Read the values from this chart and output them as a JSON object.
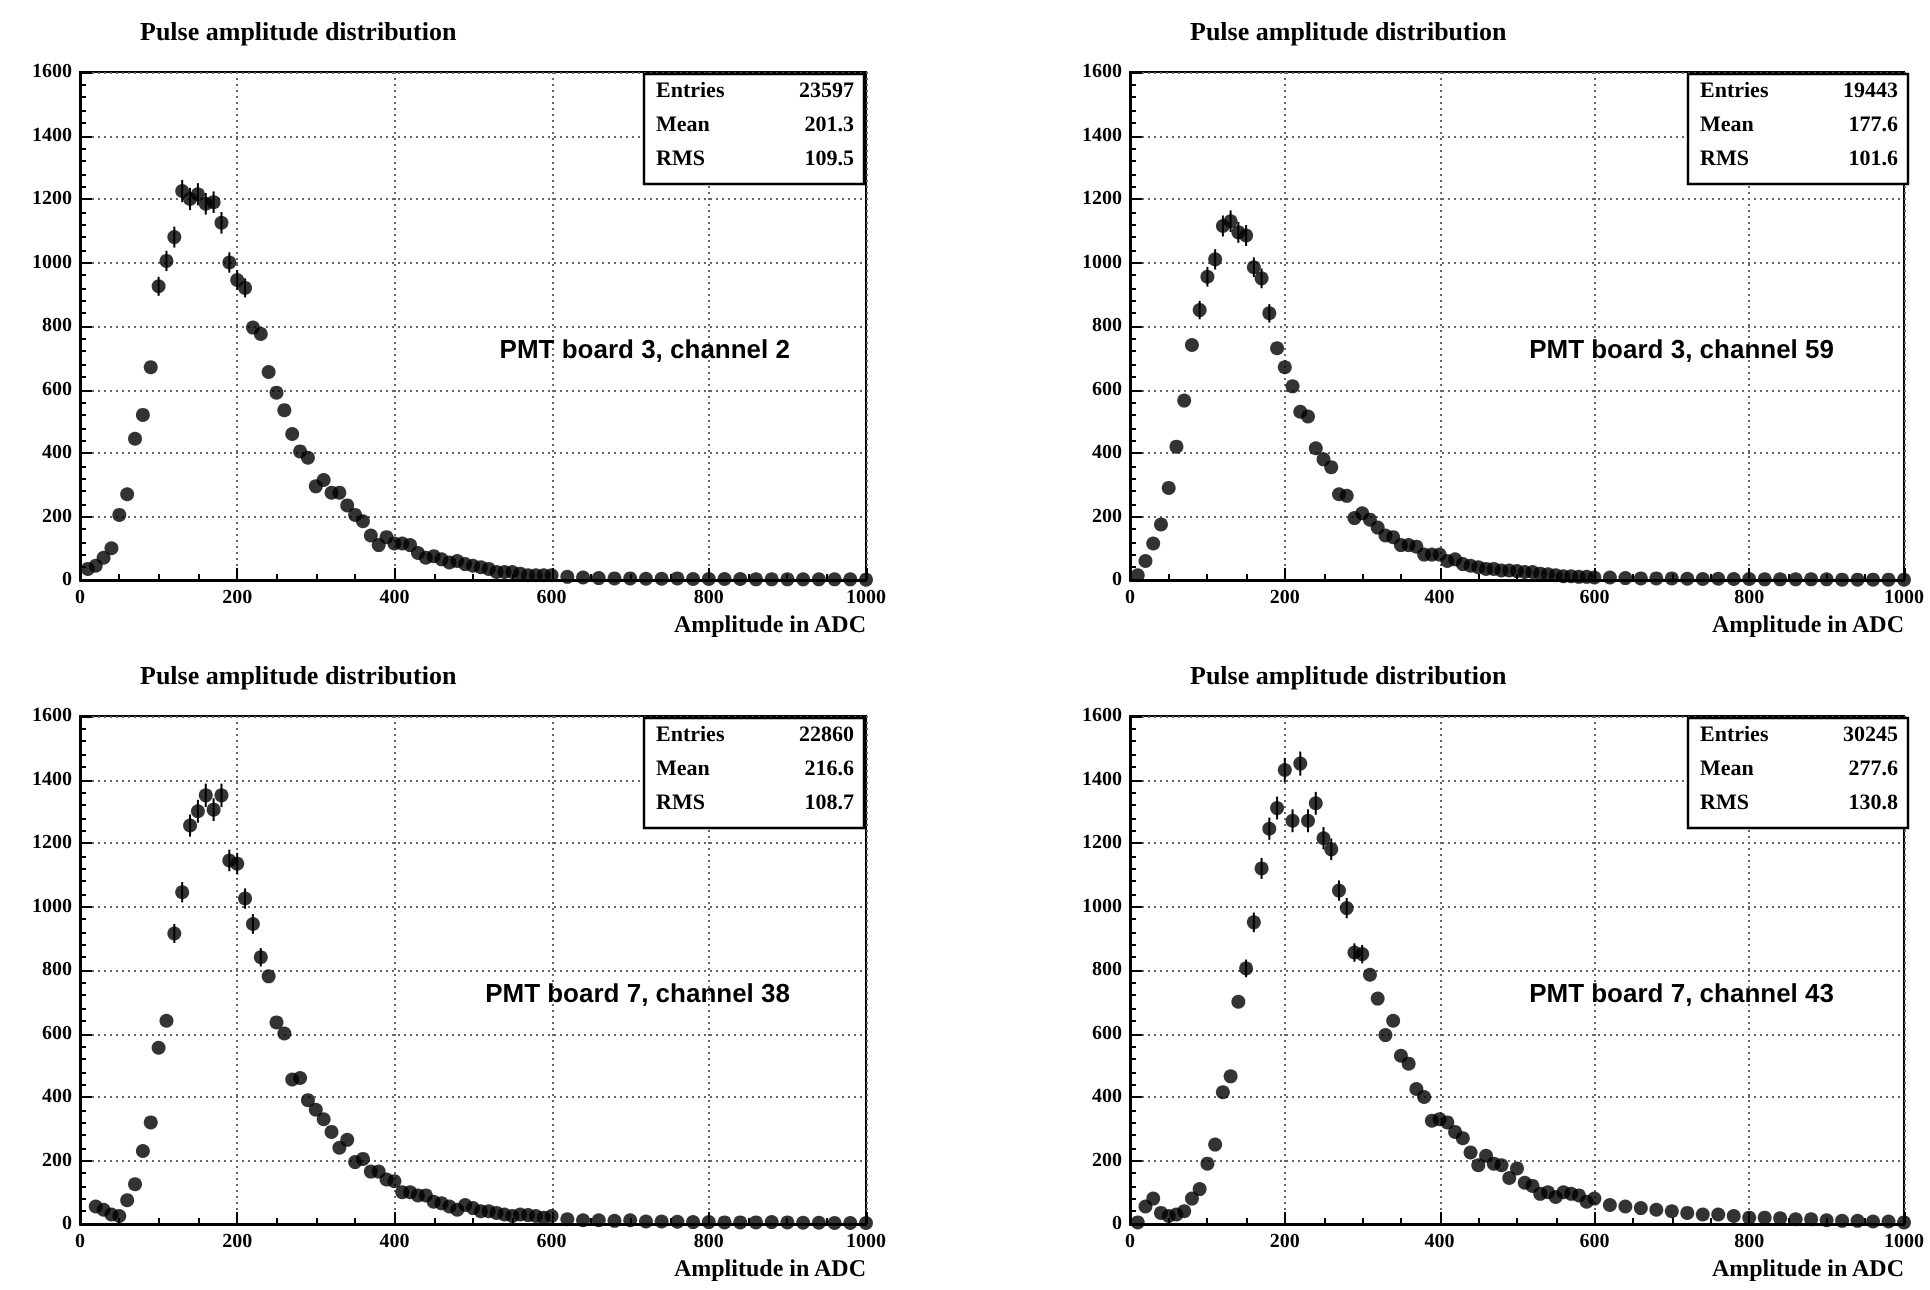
{
  "chart_data": [
    {
      "type": "scatter",
      "title": "Pulse amplitude distribution",
      "xlabel": "Amplitude in ADC",
      "annotations": [
        "Entries 23597",
        "Mean 201.3",
        "RMS 109.5",
        "PMT board 3, channel 2"
      ],
      "xlim": [
        0,
        1000
      ],
      "xticks": [
        0,
        200,
        400,
        600,
        800,
        1000
      ],
      "ylim": [
        0,
        1600
      ],
      "yticks": [
        0,
        200,
        400,
        600,
        800,
        1000,
        1200,
        1400,
        1600
      ],
      "grid": true,
      "marker": "circle",
      "x": [
        10,
        20,
        30,
        40,
        50,
        60,
        70,
        80,
        90,
        100,
        110,
        120,
        130,
        140,
        150,
        160,
        170,
        180,
        190,
        200,
        210,
        220,
        230,
        240,
        250,
        260,
        270,
        280,
        290,
        300,
        310,
        320,
        330,
        340,
        350,
        360,
        370,
        380,
        390,
        400,
        410,
        420,
        430,
        440,
        450,
        460,
        470,
        480,
        490,
        500,
        510,
        520,
        530,
        540,
        550,
        560,
        570,
        580,
        590,
        600,
        620,
        640,
        660,
        680,
        700,
        720,
        740,
        760,
        780,
        800,
        820,
        840,
        860,
        880,
        900,
        920,
        940,
        960,
        980,
        1000
      ],
      "series": [
        {
          "color": "#000000",
          "values": [
            35,
            45,
            70,
            100,
            205,
            270,
            445,
            520,
            670,
            925,
            1005,
            1080,
            1225,
            1200,
            1215,
            1185,
            1190,
            1125,
            1000,
            945,
            920,
            795,
            775,
            655,
            590,
            535,
            460,
            405,
            385,
            295,
            315,
            275,
            275,
            235,
            205,
            185,
            140,
            110,
            135,
            115,
            115,
            110,
            85,
            70,
            75,
            65,
            55,
            60,
            50,
            45,
            40,
            35,
            25,
            25,
            25,
            20,
            15,
            15,
            15,
            15,
            10,
            8,
            6,
            5,
            5,
            4,
            4,
            5,
            3,
            3,
            3,
            3,
            2,
            2,
            2,
            2,
            2,
            2,
            2,
            1
          ],
          "errors": [
            null,
            null,
            null,
            null,
            null,
            null,
            null,
            null,
            null,
            30,
            32,
            33,
            35,
            35,
            35,
            34,
            34,
            34,
            32,
            31,
            30,
            null,
            null,
            null,
            null,
            null,
            null,
            null,
            null,
            null,
            null,
            null,
            null,
            null,
            null,
            null,
            null,
            null,
            null,
            null,
            null,
            null,
            null,
            null,
            null,
            null,
            null,
            null,
            null,
            null,
            null,
            null,
            null,
            null,
            null,
            null,
            null,
            null,
            null,
            null,
            null,
            null,
            null,
            null,
            null,
            null,
            null,
            null,
            null,
            null,
            null,
            null,
            null,
            null,
            null,
            null,
            null,
            null,
            null,
            null
          ]
        }
      ]
    },
    {
      "type": "scatter",
      "title": "Pulse amplitude distribution",
      "xlabel": "Amplitude in ADC",
      "annotations": [
        "Entries 19443",
        "Mean 177.6",
        "RMS 101.6",
        "PMT board 3, channel 59"
      ],
      "xlim": [
        0,
        1000
      ],
      "xticks": [
        0,
        200,
        400,
        600,
        800,
        1000
      ],
      "ylim": [
        0,
        1600
      ],
      "yticks": [
        0,
        200,
        400,
        600,
        800,
        1000,
        1200,
        1400,
        1600
      ],
      "grid": true,
      "marker": "circle",
      "x": [
        10,
        20,
        30,
        40,
        50,
        60,
        70,
        80,
        90,
        100,
        110,
        120,
        130,
        140,
        150,
        160,
        170,
        180,
        190,
        200,
        210,
        220,
        230,
        240,
        250,
        260,
        270,
        280,
        290,
        300,
        310,
        320,
        330,
        340,
        350,
        360,
        370,
        380,
        390,
        400,
        410,
        420,
        430,
        440,
        450,
        460,
        470,
        480,
        490,
        500,
        510,
        520,
        530,
        540,
        550,
        560,
        570,
        580,
        590,
        600,
        620,
        640,
        660,
        680,
        700,
        720,
        740,
        760,
        780,
        800,
        820,
        840,
        860,
        880,
        900,
        920,
        940,
        960,
        980,
        1000
      ],
      "series": [
        {
          "color": "#000000",
          "values": [
            15,
            60,
            115,
            175,
            290,
            420,
            565,
            740,
            850,
            955,
            1010,
            1115,
            1130,
            1095,
            1085,
            985,
            950,
            840,
            730,
            670,
            610,
            530,
            515,
            415,
            380,
            355,
            270,
            265,
            195,
            210,
            190,
            165,
            140,
            135,
            110,
            110,
            105,
            80,
            80,
            80,
            60,
            65,
            50,
            45,
            40,
            35,
            35,
            30,
            30,
            28,
            25,
            25,
            20,
            18,
            15,
            12,
            12,
            10,
            10,
            8,
            8,
            6,
            5,
            5,
            5,
            4,
            3,
            4,
            3,
            3,
            2,
            2,
            2,
            2,
            2,
            1,
            1,
            1,
            1,
            1
          ],
          "errors": [
            null,
            null,
            null,
            null,
            null,
            null,
            null,
            null,
            29,
            31,
            32,
            33,
            34,
            33,
            33,
            31,
            31,
            29,
            null,
            null,
            null,
            null,
            null,
            null,
            null,
            null,
            null,
            null,
            null,
            null,
            null,
            null,
            null,
            null,
            null,
            null,
            null,
            null,
            null,
            null,
            null,
            null,
            null,
            null,
            null,
            null,
            null,
            null,
            null,
            null,
            null,
            null,
            null,
            null,
            null,
            null,
            null,
            null,
            null,
            null,
            null,
            null,
            null,
            null,
            null,
            null,
            null,
            null,
            null,
            null,
            null,
            null,
            null,
            null,
            null,
            null,
            null,
            null,
            null,
            null
          ]
        }
      ]
    },
    {
      "type": "scatter",
      "title": "Pulse amplitude distribution",
      "xlabel": "Amplitude in ADC",
      "annotations": [
        "Entries 22860",
        "Mean 216.6",
        "RMS 108.7",
        "PMT board 7, channel 38"
      ],
      "xlim": [
        0,
        1000
      ],
      "xticks": [
        0,
        200,
        400,
        600,
        800,
        1000
      ],
      "ylim": [
        0,
        1600
      ],
      "yticks": [
        0,
        200,
        400,
        600,
        800,
        1000,
        1200,
        1400,
        1600
      ],
      "grid": true,
      "marker": "circle",
      "x": [
        20,
        30,
        40,
        50,
        60,
        70,
        80,
        90,
        100,
        110,
        120,
        130,
        140,
        150,
        160,
        170,
        180,
        190,
        200,
        210,
        220,
        230,
        240,
        250,
        260,
        270,
        280,
        290,
        300,
        310,
        320,
        330,
        340,
        350,
        360,
        370,
        380,
        390,
        400,
        410,
        420,
        430,
        440,
        450,
        460,
        470,
        480,
        490,
        500,
        510,
        520,
        530,
        540,
        550,
        560,
        570,
        580,
        590,
        600,
        620,
        640,
        660,
        680,
        700,
        720,
        740,
        760,
        780,
        800,
        820,
        840,
        860,
        880,
        900,
        920,
        940,
        960,
        980,
        1000
      ],
      "series": [
        {
          "color": "#000000",
          "values": [
            55,
            45,
            30,
            25,
            75,
            125,
            230,
            320,
            555,
            640,
            915,
            1045,
            1255,
            1300,
            1350,
            1305,
            1350,
            1145,
            1135,
            1025,
            945,
            840,
            780,
            635,
            600,
            455,
            460,
            390,
            360,
            330,
            290,
            240,
            265,
            195,
            205,
            165,
            165,
            140,
            135,
            100,
            100,
            90,
            90,
            70,
            65,
            55,
            45,
            60,
            50,
            40,
            40,
            35,
            30,
            25,
            30,
            28,
            25,
            20,
            25,
            15,
            12,
            12,
            10,
            12,
            8,
            8,
            7,
            6,
            6,
            5,
            5,
            5,
            6,
            5,
            4,
            4,
            3,
            3,
            3
          ],
          "errors": [
            null,
            null,
            null,
            null,
            null,
            null,
            null,
            null,
            null,
            null,
            30,
            32,
            35,
            36,
            37,
            36,
            37,
            34,
            34,
            32,
            31,
            29,
            null,
            null,
            null,
            null,
            null,
            null,
            null,
            null,
            null,
            null,
            null,
            null,
            null,
            null,
            null,
            null,
            null,
            null,
            null,
            null,
            null,
            null,
            null,
            null,
            null,
            null,
            null,
            null,
            null,
            null,
            null,
            null,
            null,
            null,
            null,
            null,
            null,
            null,
            null,
            null,
            null,
            null,
            null,
            null,
            null,
            null,
            null,
            null,
            null,
            null,
            null,
            null,
            null,
            null,
            null,
            null,
            null
          ]
        }
      ]
    },
    {
      "type": "scatter",
      "title": "Pulse amplitude distribution",
      "xlabel": "Amplitude in ADC",
      "annotations": [
        "Entries 30245",
        "Mean 277.6",
        "RMS 130.8",
        "PMT board 7, channel 43"
      ],
      "xlim": [
        0,
        1000
      ],
      "xticks": [
        0,
        200,
        400,
        600,
        800,
        1000
      ],
      "ylim": [
        0,
        1600
      ],
      "yticks": [
        0,
        200,
        400,
        600,
        800,
        1000,
        1200,
        1400,
        1600
      ],
      "grid": true,
      "marker": "circle",
      "x": [
        10,
        20,
        30,
        40,
        50,
        60,
        70,
        80,
        90,
        100,
        110,
        120,
        130,
        140,
        150,
        160,
        170,
        180,
        190,
        200,
        210,
        220,
        230,
        240,
        250,
        260,
        270,
        280,
        290,
        300,
        310,
        320,
        330,
        340,
        350,
        360,
        370,
        380,
        390,
        400,
        410,
        420,
        430,
        440,
        450,
        460,
        470,
        480,
        490,
        500,
        510,
        520,
        530,
        540,
        550,
        560,
        570,
        580,
        590,
        600,
        620,
        640,
        660,
        680,
        700,
        720,
        740,
        760,
        780,
        800,
        820,
        840,
        860,
        880,
        900,
        920,
        940,
        960,
        980,
        1000
      ],
      "series": [
        {
          "color": "#000000",
          "values": [
            5,
            55,
            80,
            35,
            25,
            30,
            40,
            80,
            110,
            190,
            250,
            415,
            465,
            700,
            805,
            950,
            1120,
            1245,
            1310,
            1430,
            1270,
            1450,
            1270,
            1325,
            1215,
            1180,
            1050,
            995,
            855,
            850,
            785,
            710,
            595,
            640,
            530,
            505,
            425,
            400,
            325,
            330,
            320,
            290,
            270,
            225,
            185,
            215,
            190,
            185,
            145,
            175,
            130,
            120,
            95,
            100,
            85,
            100,
            95,
            90,
            70,
            80,
            60,
            55,
            50,
            45,
            40,
            35,
            30,
            30,
            25,
            20,
            20,
            18,
            15,
            15,
            12,
            10,
            10,
            8,
            8,
            5
          ],
          "errors": [
            null,
            null,
            null,
            null,
            null,
            null,
            null,
            null,
            null,
            null,
            null,
            null,
            null,
            null,
            28,
            31,
            33,
            35,
            36,
            38,
            36,
            38,
            36,
            36,
            35,
            34,
            32,
            32,
            29,
            29,
            null,
            null,
            null,
            null,
            null,
            null,
            null,
            null,
            null,
            null,
            null,
            null,
            null,
            null,
            null,
            null,
            null,
            null,
            null,
            null,
            null,
            null,
            null,
            null,
            null,
            null,
            null,
            null,
            null,
            null,
            null,
            null,
            null,
            null,
            null,
            null,
            null,
            null,
            null,
            null,
            null,
            null,
            null,
            null,
            null,
            null,
            null,
            null,
            null,
            null
          ]
        }
      ]
    }
  ]
}
